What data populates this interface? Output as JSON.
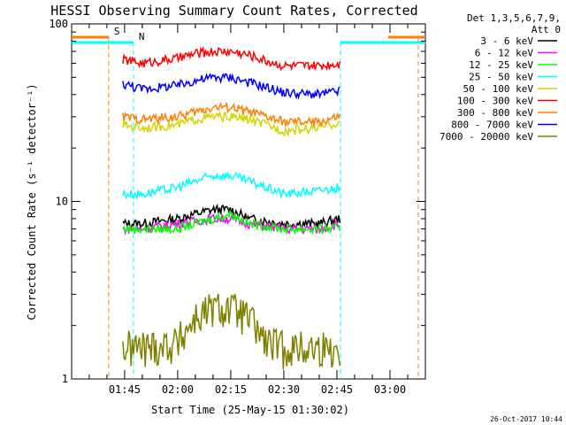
{
  "chart_data": {
    "type": "line",
    "title": "HESSI Observing Summary Count Rates, Corrected",
    "xlabel": "Start Time (25-May-15 01:30:02)",
    "ylabel": "Corrected Count Rate (s⁻¹ detector⁻¹)",
    "yscale": "log",
    "ylim": [
      1,
      100
    ],
    "xlim": [
      "01:30:02",
      "03:10:00"
    ],
    "yticks": [
      "1",
      "10",
      "100"
    ],
    "xticks": [
      "01:45",
      "02:00",
      "02:15",
      "02:30",
      "02:45",
      "03:00"
    ],
    "legend_header": [
      "Det 1,3,5,6,7,9,",
      "Att 0"
    ],
    "legend_position": "top-right",
    "grid": false,
    "footer_date": "26-Oct-2017 10:44",
    "series": [
      {
        "name": "3 - 6 keV",
        "color": "#000000",
        "x": [
          "01:44:30",
          "01:50",
          "02:00",
          "02:10",
          "02:15",
          "02:20",
          "02:30",
          "02:40",
          "02:46"
        ],
        "y": [
          7.5,
          7.5,
          8,
          9,
          9,
          8,
          7.5,
          7.5,
          8
        ]
      },
      {
        "name": "6 - 12 keV",
        "color": "#ff00ff",
        "x": [
          "01:44:30",
          "01:50",
          "02:00",
          "02:10",
          "02:15",
          "02:20",
          "02:30",
          "02:40",
          "02:46"
        ],
        "y": [
          7,
          7,
          7.5,
          8,
          8,
          7.5,
          7,
          7,
          7.5
        ]
      },
      {
        "name": "12 - 25 keV",
        "color": "#00ff00",
        "x": [
          "01:44:30",
          "01:50",
          "02:00",
          "02:10",
          "02:15",
          "02:20",
          "02:30",
          "02:40",
          "02:46"
        ],
        "y": [
          7,
          7,
          7,
          8,
          8.5,
          7.5,
          7,
          7,
          7
        ]
      },
      {
        "name": "25 - 50 keV",
        "color": "#00ffff",
        "x": [
          "01:44:30",
          "01:50",
          "02:00",
          "02:05",
          "02:10",
          "02:15",
          "02:20",
          "02:25",
          "02:30",
          "02:40",
          "02:46"
        ],
        "y": [
          11,
          11,
          12,
          13,
          14,
          14,
          13,
          12,
          11,
          11.5,
          12
        ]
      },
      {
        "name": "50 - 100 keV",
        "color": "#d4d400",
        "x": [
          "01:44:30",
          "01:50",
          "02:00",
          "02:05",
          "02:10",
          "02:15",
          "02:20",
          "02:25",
          "02:30",
          "02:40",
          "02:46"
        ],
        "y": [
          27,
          26,
          27,
          29,
          30,
          30,
          29,
          27,
          25,
          26,
          28
        ]
      },
      {
        "name": "100 - 300 keV",
        "color": "#ff0000",
        "x": [
          "01:44:30",
          "01:50",
          "02:00",
          "02:05",
          "02:10",
          "02:15",
          "02:20",
          "02:25",
          "02:30",
          "02:40",
          "02:46"
        ],
        "y": [
          63,
          60,
          64,
          68,
          70,
          70,
          67,
          62,
          58,
          58,
          60
        ]
      },
      {
        "name": "300 - 800 keV",
        "color": "#ff7f00",
        "x": [
          "01:44:30",
          "01:50",
          "02:00",
          "02:05",
          "02:10",
          "02:15",
          "02:20",
          "02:25",
          "02:30",
          "02:40",
          "02:46"
        ],
        "y": [
          30,
          29,
          30,
          32,
          34,
          34,
          32,
          30,
          28,
          28,
          30
        ]
      },
      {
        "name": "800 - 7000 keV",
        "color": "#0000ff",
        "x": [
          "01:44:30",
          "01:50",
          "02:00",
          "02:05",
          "02:10",
          "02:15",
          "02:20",
          "02:25",
          "02:30",
          "02:40",
          "02:46"
        ],
        "y": [
          46,
          43,
          45,
          48,
          50,
          50,
          47,
          44,
          41,
          40,
          42
        ]
      },
      {
        "name": "7000 - 20000 keV",
        "color": "#808000",
        "x": [
          "01:44:30",
          "01:50",
          "02:00",
          "02:05",
          "02:10",
          "02:15",
          "02:20",
          "02:25",
          "02:30",
          "02:40",
          "02:46"
        ],
        "y": [
          1.5,
          1.5,
          1.6,
          2.2,
          2.5,
          2.5,
          2.2,
          1.6,
          1.5,
          1.5,
          1.5
        ]
      }
    ],
    "flag_markers": [
      {
        "label": "S",
        "color": "#ff7f00",
        "start": "01:30:02",
        "end": "01:40:30",
        "vline": "01:40:30"
      },
      {
        "label": "N",
        "color": "#00ffff",
        "start": "01:30:02",
        "end": "01:47:30",
        "vline": "01:47:30"
      }
    ],
    "flag_markers_end": [
      {
        "color": "#00ffff",
        "start": "02:46:00",
        "end": "03:10:00",
        "vline": "02:46:00"
      },
      {
        "color": "#ff7f00",
        "start": "02:59:30",
        "end": "03:10:00",
        "vline": "03:08:00"
      }
    ]
  }
}
